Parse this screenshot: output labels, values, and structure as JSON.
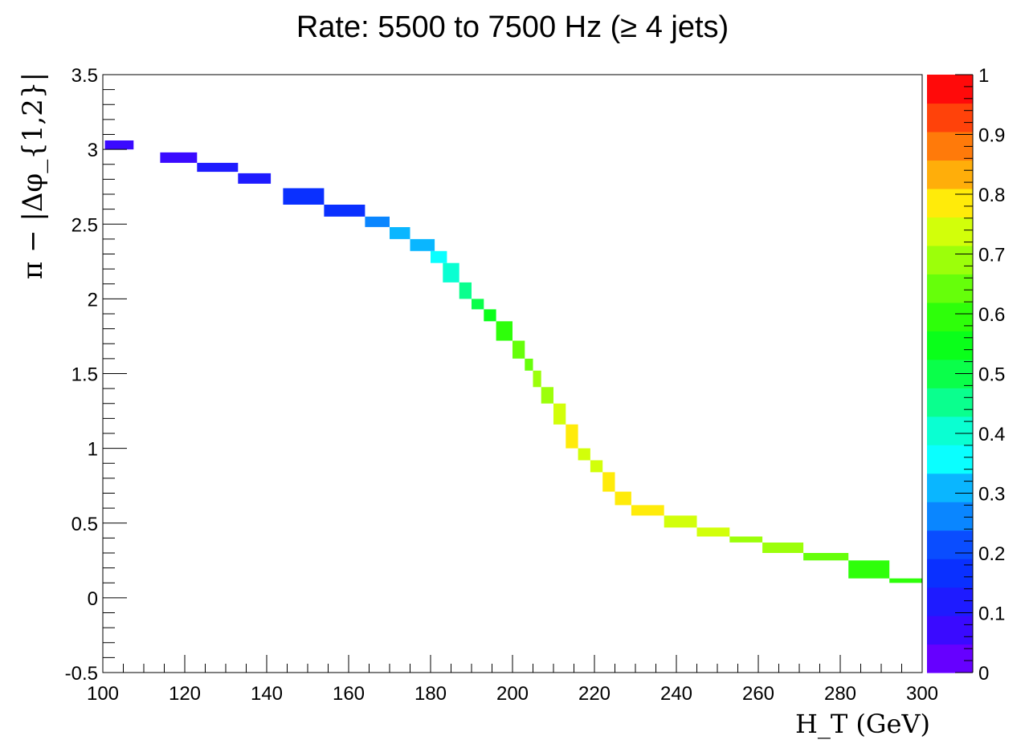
{
  "chart_data": {
    "type": "heatmap",
    "title": "Rate: 5500 to 7500 Hz (≥ 4 jets)",
    "xlabel": "H_T (GeV)",
    "ylabel": "π − |Δφ_{1,2}|",
    "xlim": [
      100,
      300
    ],
    "ylim": [
      -0.5,
      3.5
    ],
    "zlim": [
      0,
      1
    ],
    "x_ticks": [
      "100",
      "120",
      "140",
      "160",
      "180",
      "200",
      "220",
      "240",
      "260",
      "280",
      "300"
    ],
    "y_ticks": [
      "-0.5",
      "0",
      "0.5",
      "1",
      "1.5",
      "2",
      "2.5",
      "3",
      "3.5"
    ],
    "z_ticks": [
      "0",
      "0.1",
      "0.2",
      "0.3",
      "0.4",
      "0.5",
      "0.6",
      "0.7",
      "0.8",
      "0.9",
      "1"
    ],
    "grid": false,
    "colorbar": "right",
    "palette": [
      "#6600ff",
      "#3a0aff",
      "#1e1bff",
      "#0a30ff",
      "#0a4dff",
      "#0a86ff",
      "#0ab6ff",
      "#0affff",
      "#0affd2",
      "#0aff8e",
      "#0aff4a",
      "#0aff1a",
      "#2eff0a",
      "#66ff0a",
      "#9cff0a",
      "#d2ff0a",
      "#ffeb0a",
      "#ffae0a",
      "#ff7a0a",
      "#ff420a",
      "#ff0a0a"
    ],
    "bins": [
      {
        "x": [
          100.5,
          107.5
        ],
        "y": [
          3.0,
          3.06
        ],
        "z": 0.03
      },
      {
        "x": [
          114,
          123
        ],
        "y": [
          2.91,
          2.98
        ],
        "z": 0.07
      },
      {
        "x": [
          123,
          133
        ],
        "y": [
          2.85,
          2.91
        ],
        "z": 0.11
      },
      {
        "x": [
          133,
          141
        ],
        "y": [
          2.77,
          2.84
        ],
        "z": 0.12
      },
      {
        "x": [
          144,
          154
        ],
        "y": [
          2.63,
          2.74
        ],
        "z": 0.16
      },
      {
        "x": [
          154,
          164
        ],
        "y": [
          2.55,
          2.63
        ],
        "z": 0.17
      },
      {
        "x": [
          164,
          170
        ],
        "y": [
          2.48,
          2.55
        ],
        "z": 0.23
      },
      {
        "x": [
          170,
          175
        ],
        "y": [
          2.4,
          2.48
        ],
        "z": 0.28
      },
      {
        "x": [
          175,
          181
        ],
        "y": [
          2.32,
          2.4
        ],
        "z": 0.31
      },
      {
        "x": [
          180,
          184
        ],
        "y": [
          2.24,
          2.32
        ],
        "z": 0.37
      },
      {
        "x": [
          183,
          187
        ],
        "y": [
          2.11,
          2.24
        ],
        "z": 0.42
      },
      {
        "x": [
          187,
          190
        ],
        "y": [
          2.0,
          2.11
        ],
        "z": 0.44
      },
      {
        "x": [
          190,
          193
        ],
        "y": [
          1.93,
          2.0
        ],
        "z": 0.5
      },
      {
        "x": [
          193,
          196
        ],
        "y": [
          1.85,
          1.93
        ],
        "z": 0.53
      },
      {
        "x": [
          196,
          200
        ],
        "y": [
          1.72,
          1.85
        ],
        "z": 0.62
      },
      {
        "x": [
          200,
          203
        ],
        "y": [
          1.6,
          1.72
        ],
        "z": 0.64
      },
      {
        "x": [
          203,
          205
        ],
        "y": [
          1.52,
          1.6
        ],
        "z": 0.67
      },
      {
        "x": [
          205,
          207
        ],
        "y": [
          1.41,
          1.52
        ],
        "z": 0.69
      },
      {
        "x": [
          207,
          210
        ],
        "y": [
          1.3,
          1.41
        ],
        "z": 0.72
      },
      {
        "x": [
          210,
          213
        ],
        "y": [
          1.16,
          1.3
        ],
        "z": 0.77
      },
      {
        "x": [
          213,
          216
        ],
        "y": [
          1.0,
          1.16
        ],
        "z": 0.78
      },
      {
        "x": [
          216,
          219
        ],
        "y": [
          0.92,
          1.0
        ],
        "z": 0.76
      },
      {
        "x": [
          219,
          222
        ],
        "y": [
          0.84,
          0.92
        ],
        "z": 0.76
      },
      {
        "x": [
          222,
          225
        ],
        "y": [
          0.71,
          0.84
        ],
        "z": 0.8
      },
      {
        "x": [
          225,
          229
        ],
        "y": [
          0.62,
          0.71
        ],
        "z": 0.79
      },
      {
        "x": [
          229,
          237
        ],
        "y": [
          0.55,
          0.62
        ],
        "z": 0.78
      },
      {
        "x": [
          237,
          245
        ],
        "y": [
          0.47,
          0.55
        ],
        "z": 0.77
      },
      {
        "x": [
          245,
          253
        ],
        "y": [
          0.41,
          0.47
        ],
        "z": 0.73
      },
      {
        "x": [
          253,
          261
        ],
        "y": [
          0.37,
          0.41
        ],
        "z": 0.7
      },
      {
        "x": [
          261,
          271
        ],
        "y": [
          0.3,
          0.37
        ],
        "z": 0.68
      },
      {
        "x": [
          271,
          282
        ],
        "y": [
          0.25,
          0.3
        ],
        "z": 0.65
      },
      {
        "x": [
          282,
          292
        ],
        "y": [
          0.13,
          0.25
        ],
        "z": 0.6
      },
      {
        "x": [
          292,
          300
        ],
        "y": [
          0.1,
          0.13
        ],
        "z": 0.6
      }
    ]
  }
}
